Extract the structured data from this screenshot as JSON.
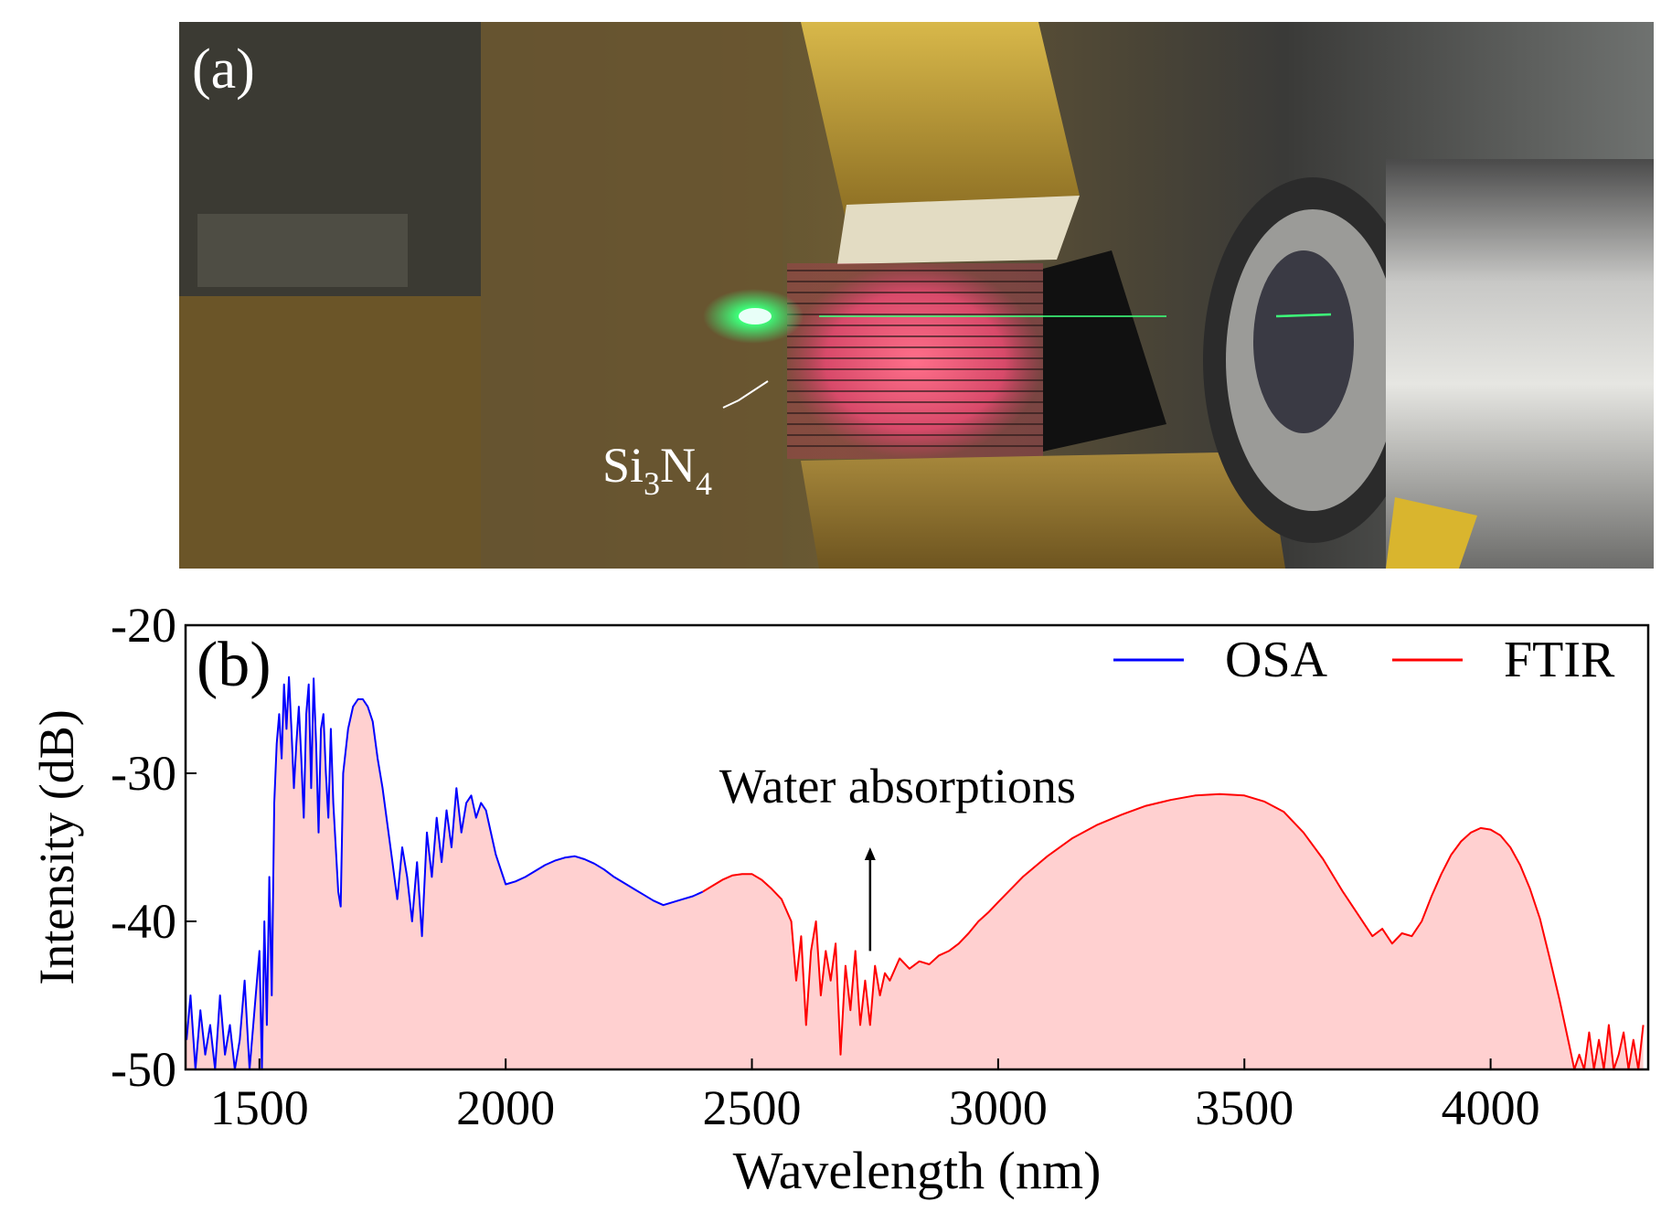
{
  "photo": {
    "panel_label": "(a)",
    "chip_label_main": "Si",
    "chip_label_sub1": "3",
    "chip_label_mid": "N",
    "chip_label_sub2": "4",
    "description_colors": {
      "brass": "#c9a23a",
      "laser_green": "#3dff7a",
      "chip_pink": "#e0607a",
      "steel": "#b8b8b8"
    }
  },
  "chart_data": {
    "type": "area",
    "panel_label": "(b)",
    "title": "",
    "xlabel": "Wavelength (nm)",
    "ylabel": "Intensity (dB)",
    "xlim": [
      1350,
      4320
    ],
    "ylim": [
      -50,
      -20
    ],
    "xticks": [
      1500,
      2000,
      2500,
      3000,
      3500,
      4000
    ],
    "xtick_labels": [
      "1500",
      "2000",
      "2500",
      "3000",
      "3500",
      "4000"
    ],
    "yticks": [
      -20,
      -30,
      -40,
      -50
    ],
    "ytick_labels": [
      "-20",
      "-30",
      "-40",
      "-50"
    ],
    "legend_position": "top-right",
    "fill_color": "#ffd0d0",
    "annotation": {
      "text": "Water absorptions",
      "x": 2740,
      "y_from": -42,
      "y_to": -35
    },
    "series": [
      {
        "name": "OSA",
        "color": "#0000ff",
        "x": [
          1352,
          1360,
          1370,
          1380,
          1390,
          1400,
          1410,
          1420,
          1430,
          1440,
          1450,
          1460,
          1470,
          1480,
          1490,
          1500,
          1505,
          1510,
          1515,
          1520,
          1525,
          1530,
          1535,
          1540,
          1545,
          1550,
          1555,
          1560,
          1565,
          1570,
          1575,
          1580,
          1585,
          1590,
          1595,
          1600,
          1605,
          1610,
          1615,
          1620,
          1625,
          1630,
          1635,
          1640,
          1645,
          1650,
          1655,
          1660,
          1665,
          1670,
          1680,
          1690,
          1700,
          1710,
          1720,
          1730,
          1740,
          1750,
          1760,
          1770,
          1780,
          1790,
          1800,
          1810,
          1820,
          1830,
          1840,
          1850,
          1860,
          1870,
          1880,
          1890,
          1900,
          1910,
          1920,
          1930,
          1940,
          1950,
          1960,
          1970,
          1980,
          1990,
          2000,
          2020,
          2040,
          2060,
          2080,
          2100,
          2120,
          2140,
          2160,
          2180,
          2200,
          2220,
          2240,
          2260,
          2280,
          2300,
          2320,
          2340,
          2360,
          2380,
          2400
        ],
        "y": [
          -48,
          -45,
          -50,
          -46,
          -49,
          -47,
          -50,
          -45,
          -49,
          -47,
          -50,
          -48,
          -44,
          -50,
          -46,
          -42,
          -50,
          -40,
          -47,
          -37,
          -45,
          -32,
          -28,
          -26,
          -29,
          -24,
          -27,
          -23.5,
          -27,
          -31,
          -28,
          -25.5,
          -29,
          -33,
          -26,
          -24,
          -31,
          -23.6,
          -28,
          -34,
          -27,
          -26,
          -30,
          -33,
          -27,
          -32,
          -35,
          -38,
          -39,
          -30,
          -27,
          -25.5,
          -25,
          -25,
          -25.5,
          -26.5,
          -29,
          -31,
          -33.5,
          -36,
          -38.5,
          -35,
          -37,
          -40,
          -36,
          -41,
          -34,
          -37,
          -33,
          -36,
          -32.5,
          -35,
          -31,
          -34,
          -32,
          -31.5,
          -33,
          -32,
          -32.5,
          -34,
          -35.5,
          -36.5,
          -37.5,
          -37.3,
          -37,
          -36.6,
          -36.2,
          -35.9,
          -35.7,
          -35.6,
          -35.8,
          -36.1,
          -36.5,
          -37,
          -37.4,
          -37.8,
          -38.2,
          -38.6,
          -38.9,
          -38.7,
          -38.5,
          -38.3,
          -38
        ]
      },
      {
        "name": "FTIR",
        "color": "#ff0000",
        "x": [
          2400,
          2420,
          2440,
          2460,
          2480,
          2500,
          2520,
          2540,
          2560,
          2580,
          2590,
          2600,
          2610,
          2620,
          2630,
          2640,
          2650,
          2660,
          2670,
          2680,
          2690,
          2700,
          2710,
          2720,
          2730,
          2740,
          2750,
          2760,
          2770,
          2780,
          2800,
          2820,
          2840,
          2860,
          2880,
          2900,
          2920,
          2940,
          2960,
          2980,
          3000,
          3050,
          3100,
          3150,
          3200,
          3250,
          3300,
          3350,
          3400,
          3450,
          3500,
          3540,
          3580,
          3620,
          3660,
          3700,
          3730,
          3760,
          3780,
          3800,
          3820,
          3840,
          3860,
          3880,
          3900,
          3920,
          3940,
          3960,
          3980,
          4000,
          4020,
          4040,
          4060,
          4080,
          4100,
          4120,
          4140,
          4160,
          4170,
          4180,
          4190,
          4200,
          4210,
          4220,
          4230,
          4240,
          4250,
          4260,
          4270,
          4280,
          4290,
          4300,
          4310
        ],
        "y": [
          -38,
          -37.6,
          -37.2,
          -36.9,
          -36.8,
          -36.8,
          -37.2,
          -37.8,
          -38.5,
          -40,
          -44,
          -41,
          -47,
          -42,
          -40,
          -45,
          -42,
          -44,
          -41.5,
          -49,
          -43,
          -46,
          -42,
          -47,
          -44,
          -47,
          -43,
          -45,
          -43.5,
          -44,
          -42.5,
          -43.2,
          -42.7,
          -42.9,
          -42.3,
          -42,
          -41.5,
          -40.8,
          -40,
          -39.4,
          -38.7,
          -37,
          -35.6,
          -34.4,
          -33.5,
          -32.8,
          -32.2,
          -31.8,
          -31.5,
          -31.4,
          -31.5,
          -31.9,
          -32.6,
          -34,
          -35.8,
          -38,
          -39.5,
          -41,
          -40.5,
          -41.5,
          -40.8,
          -41,
          -40,
          -38.3,
          -36.8,
          -35.5,
          -34.6,
          -34,
          -33.7,
          -33.8,
          -34.2,
          -35,
          -36.2,
          -37.8,
          -39.8,
          -42.5,
          -45.3,
          -48.4,
          -50,
          -49,
          -50,
          -47.5,
          -50,
          -48,
          -50,
          -47,
          -50,
          -49,
          -47.5,
          -50,
          -48,
          -50,
          -47
        ]
      }
    ]
  }
}
